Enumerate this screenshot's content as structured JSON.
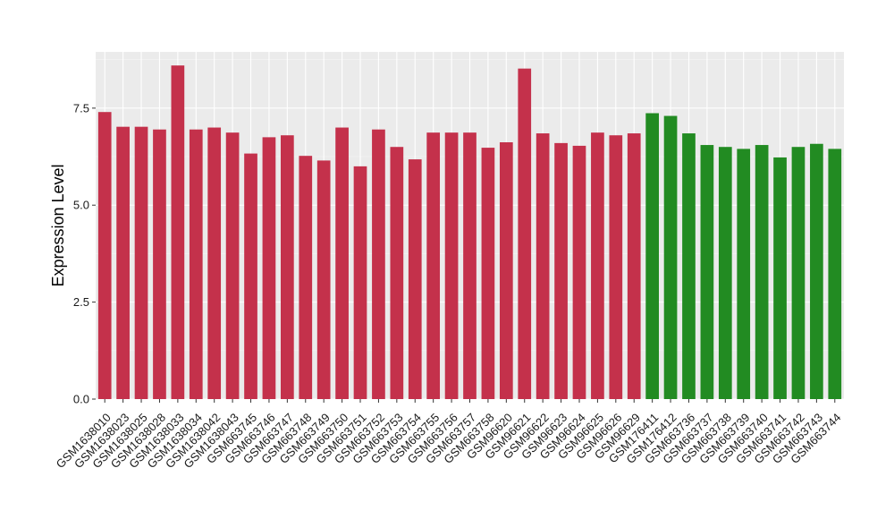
{
  "colors": {
    "panel_background": "#ebebeb",
    "grid_major": "#ffffff",
    "grid_minor": "#f5f5f5",
    "tick_mark": "#333333",
    "group_1_fill": "#c4314b",
    "group_2_fill": "#228b22"
  },
  "chart_data": {
    "type": "bar",
    "title": "",
    "xlabel": "",
    "ylabel": "Expression Level",
    "ylim": [
      0,
      8.95
    ],
    "yticks": [
      0.0,
      2.5,
      5.0,
      7.5
    ],
    "ytick_labels": [
      "0.0",
      "2.5",
      "5.0",
      "7.5"
    ],
    "grid": true,
    "legend": "none",
    "categories": [
      "GSM1638010",
      "GSM1638023",
      "GSM1638025",
      "GSM1638028",
      "GSM1638033",
      "GSM1638034",
      "GSM1638042",
      "GSM1638043",
      "GSM663745",
      "GSM663746",
      "GSM663747",
      "GSM663748",
      "GSM663749",
      "GSM663750",
      "GSM663751",
      "GSM663752",
      "GSM663753",
      "GSM663754",
      "GSM663755",
      "GSM663756",
      "GSM663757",
      "GSM663758",
      "GSM96620",
      "GSM96621",
      "GSM96622",
      "GSM96623",
      "GSM96624",
      "GSM96625",
      "GSM96626",
      "GSM96629",
      "GSM176411",
      "GSM176412",
      "GSM663736",
      "GSM663737",
      "GSM663738",
      "GSM663739",
      "GSM663740",
      "GSM663741",
      "GSM663742",
      "GSM663743",
      "GSM663744"
    ],
    "values": [
      7.4,
      7.02,
      7.02,
      6.95,
      8.6,
      6.95,
      7.0,
      6.87,
      6.33,
      6.75,
      6.8,
      6.27,
      6.15,
      7.0,
      6.0,
      6.95,
      6.5,
      6.18,
      6.87,
      6.87,
      6.87,
      6.48,
      6.62,
      8.52,
      6.85,
      6.6,
      6.53,
      6.87,
      6.8,
      6.85,
      7.37,
      7.3,
      6.85,
      6.55,
      6.5,
      6.45,
      6.55,
      6.23,
      6.5,
      6.58,
      6.45
    ],
    "groups": [
      1,
      1,
      1,
      1,
      1,
      1,
      1,
      1,
      1,
      1,
      1,
      1,
      1,
      1,
      1,
      1,
      1,
      1,
      1,
      1,
      1,
      1,
      1,
      1,
      1,
      1,
      1,
      1,
      1,
      1,
      2,
      2,
      2,
      2,
      2,
      2,
      2,
      2,
      2,
      2,
      2
    ]
  }
}
